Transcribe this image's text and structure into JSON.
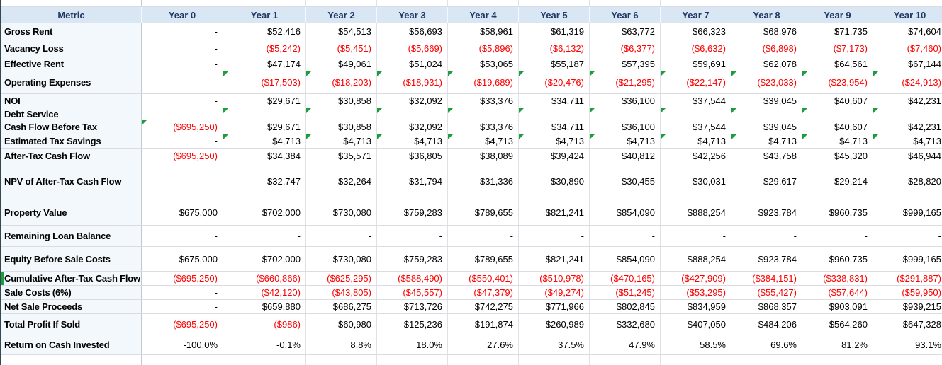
{
  "colors": {
    "header_bg": "#d9e6f3",
    "header_text": "#1f3864",
    "label_column_bg": "#f3f8fc",
    "negative_value": "#ff0000",
    "formula_flag_green": "#1e9c40",
    "gridline": "#dbdbe1"
  },
  "icons": {
    "corner_flag": "formula-flag-triangle",
    "label_flag": "row-label-flag-bar"
  },
  "table": {
    "header": {
      "metric": "Metric",
      "years": [
        "Year 0",
        "Year 1",
        "Year 2",
        "Year 3",
        "Year 4",
        "Year 5",
        "Year 6",
        "Year 7",
        "Year 8",
        "Year 9",
        "Year 10"
      ]
    },
    "rows": [
      {
        "label": "Gross Rent",
        "values": [
          "-",
          "$52,416",
          "$54,513",
          "$56,693",
          "$58,961",
          "$61,319",
          "$63,772",
          "$66,323",
          "$68,976",
          "$71,735",
          "$74,604"
        ],
        "flags": []
      },
      {
        "label": "Vacancy Loss",
        "values": [
          "-",
          "($5,242)",
          "($5,451)",
          "($5,669)",
          "($5,896)",
          "($6,132)",
          "($6,377)",
          "($6,632)",
          "($6,898)",
          "($7,173)",
          "($7,460)"
        ],
        "flags": []
      },
      {
        "label": "Effective Rent",
        "values": [
          "-",
          "$47,174",
          "$49,061",
          "$51,024",
          "$53,065",
          "$55,187",
          "$57,395",
          "$59,691",
          "$62,078",
          "$64,561",
          "$67,144"
        ],
        "flags": []
      },
      {
        "label": "Operating Expenses",
        "values": [
          "-",
          "($17,503)",
          "($18,203)",
          "($18,931)",
          "($19,689)",
          "($20,476)",
          "($21,295)",
          "($22,147)",
          "($23,033)",
          "($23,954)",
          "($24,913)"
        ],
        "flags": [
          1,
          2,
          3,
          4,
          5,
          6,
          7,
          8,
          9,
          10
        ]
      },
      {
        "label": "NOI",
        "values": [
          "-",
          "$29,671",
          "$30,858",
          "$32,092",
          "$33,376",
          "$34,711",
          "$36,100",
          "$37,544",
          "$39,045",
          "$40,607",
          "$42,231"
        ],
        "flags": []
      },
      {
        "label": "Debt Service",
        "values": [
          "-",
          "-",
          "-",
          "-",
          "-",
          "-",
          "-",
          "-",
          "-",
          "-",
          "-"
        ],
        "flags": [
          1,
          2,
          3,
          4,
          5,
          6,
          7,
          8,
          9,
          10
        ]
      },
      {
        "label": "Cash Flow Before Tax",
        "values": [
          "($695,250)",
          "$29,671",
          "$30,858",
          "$32,092",
          "$33,376",
          "$34,711",
          "$36,100",
          "$37,544",
          "$39,045",
          "$40,607",
          "$42,231"
        ],
        "flags": [
          0
        ]
      },
      {
        "label": "Estimated Tax Savings",
        "values": [
          "-",
          "$4,713",
          "$4,713",
          "$4,713",
          "$4,713",
          "$4,713",
          "$4,713",
          "$4,713",
          "$4,713",
          "$4,713",
          "$4,713"
        ],
        "flags": [
          1,
          2,
          3,
          4,
          5,
          6,
          7,
          8,
          9,
          10
        ]
      },
      {
        "label": "After-Tax Cash Flow",
        "values": [
          "($695,250)",
          "$34,384",
          "$35,571",
          "$36,805",
          "$38,089",
          "$39,424",
          "$40,812",
          "$42,256",
          "$43,758",
          "$45,320",
          "$46,944"
        ],
        "flags": []
      },
      {
        "label": "NPV of After-Tax Cash Flow",
        "values": [
          "-",
          "$32,747",
          "$32,264",
          "$31,794",
          "$31,336",
          "$30,890",
          "$30,455",
          "$30,031",
          "$29,617",
          "$29,214",
          "$28,820"
        ],
        "flags": []
      },
      {
        "label": "Property Value",
        "values": [
          "$675,000",
          "$702,000",
          "$730,080",
          "$759,283",
          "$789,655",
          "$821,241",
          "$854,090",
          "$888,254",
          "$923,784",
          "$960,735",
          "$999,165"
        ],
        "flags": []
      },
      {
        "label": "Remaining Loan Balance",
        "values": [
          "-",
          "-",
          "-",
          "-",
          "-",
          "-",
          "-",
          "-",
          "-",
          "-",
          "-"
        ],
        "flags": []
      },
      {
        "label": "Equity Before Sale Costs",
        "values": [
          "$675,000",
          "$702,000",
          "$730,080",
          "$759,283",
          "$789,655",
          "$821,241",
          "$854,090",
          "$888,254",
          "$923,784",
          "$960,735",
          "$999,165"
        ],
        "flags": []
      },
      {
        "label": "Cumulative After-Tax Cash Flow",
        "values": [
          "($695,250)",
          "($660,866)",
          "($625,295)",
          "($588,490)",
          "($550,401)",
          "($510,978)",
          "($470,165)",
          "($427,909)",
          "($384,151)",
          "($338,831)",
          "($291,887)"
        ],
        "flags": [],
        "label_flag": true
      },
      {
        "label": "Sale Costs (6%)",
        "values": [
          "-",
          "($42,120)",
          "($43,805)",
          "($45,557)",
          "($47,379)",
          "($49,274)",
          "($51,245)",
          "($53,295)",
          "($55,427)",
          "($57,644)",
          "($59,950)"
        ],
        "flags": []
      },
      {
        "label": "Net Sale Proceeds",
        "values": [
          "-",
          "$659,880",
          "$686,275",
          "$713,726",
          "$742,275",
          "$771,966",
          "$802,845",
          "$834,959",
          "$868,357",
          "$903,091",
          "$939,215"
        ],
        "flags": []
      },
      {
        "label": "Total Profit If Sold",
        "values": [
          "($695,250)",
          "($986)",
          "$60,980",
          "$125,236",
          "$191,874",
          "$260,989",
          "$332,680",
          "$407,050",
          "$484,206",
          "$564,260",
          "$647,328"
        ],
        "flags": []
      },
      {
        "label": "Return on Cash Invested",
        "values": [
          "-100.0%",
          "-0.1%",
          "8.8%",
          "18.0%",
          "27.6%",
          "37.5%",
          "47.9%",
          "58.5%",
          "69.6%",
          "81.2%",
          "93.1%"
        ],
        "flags": []
      }
    ]
  }
}
